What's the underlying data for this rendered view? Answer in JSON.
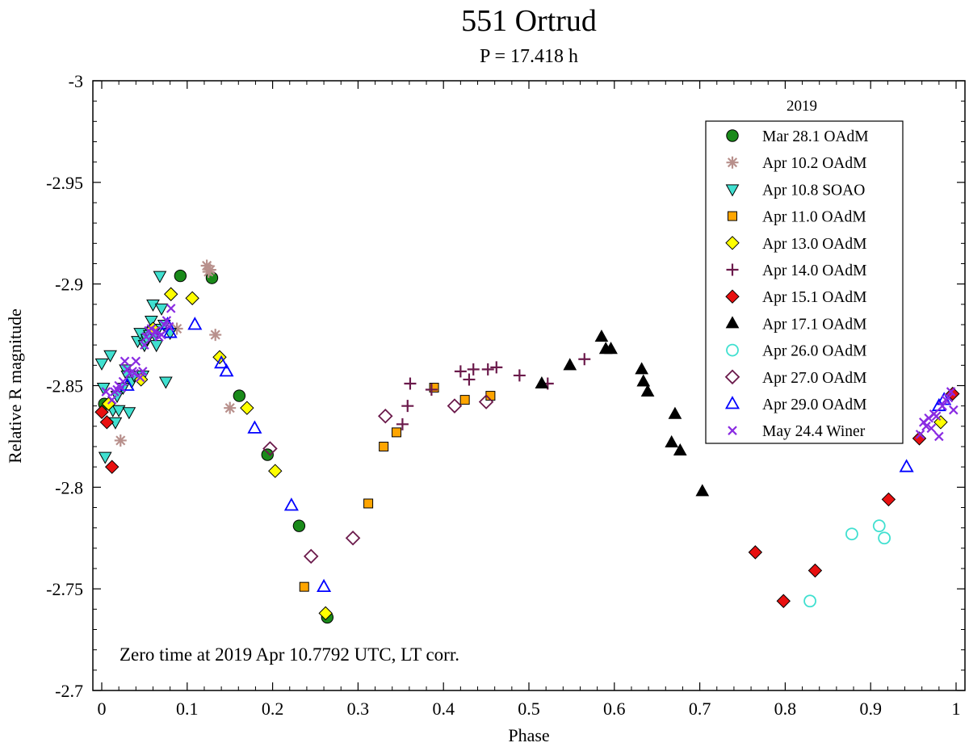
{
  "chart_data": {
    "type": "scatter",
    "title": "551 Ortrud",
    "subtitle": "P = 17.418 h",
    "xlabel": "Phase",
    "ylabel": "Relative R magnitude",
    "xlim": [
      0,
      1
    ],
    "ylim": [
      -3,
      -2.7
    ],
    "y_inverted": true,
    "x_ticks": [
      "0",
      "0.1",
      "0.2",
      "0.3",
      "0.4",
      "0.5",
      "0.6",
      "0.7",
      "0.8",
      "0.9",
      "1"
    ],
    "y_ticks": [
      "-3",
      "-2.95",
      "-2.9",
      "-2.85",
      "-2.8",
      "-2.75",
      "-2.7"
    ],
    "grid": false,
    "legend_title": "2019",
    "legend_position": "top-right",
    "annotation": "Zero time at 2019 Apr 10.7792 UTC, LT corr.",
    "series": [
      {
        "name": "Mar 28.1 OAdM",
        "marker": "circle",
        "color": "#1a8a1a",
        "points": [
          [
            0.003,
            -2.841
          ],
          [
            0.058,
            -2.877
          ],
          [
            0.092,
            -2.904
          ],
          [
            0.129,
            -2.903
          ],
          [
            0.161,
            -2.845
          ],
          [
            0.194,
            -2.816
          ],
          [
            0.231,
            -2.781
          ],
          [
            0.264,
            -2.736
          ]
        ]
      },
      {
        "name": "Apr 10.2 OAdM",
        "marker": "asterisk",
        "color": "#b8908c",
        "points": [
          [
            0.022,
            -2.823
          ],
          [
            0.088,
            -2.878
          ],
          [
            0.123,
            -2.909
          ],
          [
            0.125,
            -2.906
          ],
          [
            0.133,
            -2.875
          ],
          [
            0.15,
            -2.839
          ],
          [
            0.127,
            -2.907
          ]
        ]
      },
      {
        "name": "Apr 10.8 SOAO",
        "marker": "triangle-down",
        "color": "#40e0d0",
        "points": [
          [
            0.0,
            -2.861
          ],
          [
            0.002,
            -2.849
          ],
          [
            0.004,
            -2.815
          ],
          [
            0.01,
            -2.865
          ],
          [
            0.013,
            -2.838
          ],
          [
            0.016,
            -2.832
          ],
          [
            0.018,
            -2.845
          ],
          [
            0.02,
            -2.838
          ],
          [
            0.025,
            -2.849
          ],
          [
            0.028,
            -2.858
          ],
          [
            0.03,
            -2.855
          ],
          [
            0.032,
            -2.837
          ],
          [
            0.035,
            -2.852
          ],
          [
            0.038,
            -2.855
          ],
          [
            0.042,
            -2.872
          ],
          [
            0.045,
            -2.876
          ],
          [
            0.048,
            -2.855
          ],
          [
            0.05,
            -2.87
          ],
          [
            0.053,
            -2.873
          ],
          [
            0.056,
            -2.875
          ],
          [
            0.058,
            -2.882
          ],
          [
            0.06,
            -2.89
          ],
          [
            0.062,
            -2.875
          ],
          [
            0.064,
            -2.87
          ],
          [
            0.066,
            -2.878
          ],
          [
            0.068,
            -2.904
          ],
          [
            0.07,
            -2.888
          ],
          [
            0.073,
            -2.88
          ],
          [
            0.075,
            -2.852
          ],
          [
            0.08,
            -2.876
          ]
        ]
      },
      {
        "name": "Apr 11.0 OAdM",
        "marker": "square",
        "color": "#ffa500",
        "points": [
          [
            0.237,
            -2.751
          ],
          [
            0.312,
            -2.792
          ],
          [
            0.33,
            -2.82
          ],
          [
            0.345,
            -2.827
          ],
          [
            0.389,
            -2.849
          ],
          [
            0.425,
            -2.843
          ],
          [
            0.455,
            -2.845
          ]
        ]
      },
      {
        "name": "Apr 13.0 OAdM",
        "marker": "diamond",
        "color": "#ffff00",
        "points": [
          [
            0.008,
            -2.841
          ],
          [
            0.046,
            -2.853
          ],
          [
            0.06,
            -2.878
          ],
          [
            0.081,
            -2.895
          ],
          [
            0.106,
            -2.893
          ],
          [
            0.138,
            -2.864
          ],
          [
            0.17,
            -2.839
          ],
          [
            0.203,
            -2.808
          ],
          [
            0.262,
            -2.738
          ],
          [
            0.982,
            -2.832
          ]
        ]
      },
      {
        "name": "Apr 14.0 OAdM",
        "marker": "plus",
        "color": "#6b1a4b",
        "points": [
          [
            0.352,
            -2.831
          ],
          [
            0.358,
            -2.84
          ],
          [
            0.361,
            -2.851
          ],
          [
            0.386,
            -2.848
          ],
          [
            0.42,
            -2.857
          ],
          [
            0.43,
            -2.853
          ],
          [
            0.435,
            -2.858
          ],
          [
            0.452,
            -2.858
          ],
          [
            0.462,
            -2.859
          ],
          [
            0.489,
            -2.855
          ],
          [
            0.522,
            -2.851
          ],
          [
            0.565,
            -2.863
          ]
        ]
      },
      {
        "name": "Apr 15.1 OAdM",
        "marker": "diamond",
        "color": "#e81010",
        "points": [
          [
            0.0,
            -2.837
          ],
          [
            0.006,
            -2.832
          ],
          [
            0.012,
            -2.81
          ],
          [
            0.765,
            -2.768
          ],
          [
            0.798,
            -2.744
          ],
          [
            0.835,
            -2.759
          ],
          [
            0.921,
            -2.794
          ],
          [
            0.957,
            -2.824
          ],
          [
            0.996,
            -2.846
          ]
        ]
      },
      {
        "name": "Apr 17.1 OAdM",
        "marker": "triangle-up",
        "color": "#000000",
        "points": [
          [
            0.515,
            -2.851
          ],
          [
            0.548,
            -2.86
          ],
          [
            0.585,
            -2.874
          ],
          [
            0.59,
            -2.868
          ],
          [
            0.596,
            -2.868
          ],
          [
            0.632,
            -2.858
          ],
          [
            0.634,
            -2.852
          ],
          [
            0.639,
            -2.847
          ],
          [
            0.667,
            -2.822
          ],
          [
            0.671,
            -2.836
          ],
          [
            0.677,
            -2.818
          ],
          [
            0.703,
            -2.798
          ]
        ]
      },
      {
        "name": "Apr 26.0 OAdM",
        "marker": "circle-open",
        "color": "#40e0d0",
        "points": [
          [
            0.829,
            -2.744
          ],
          [
            0.878,
            -2.777
          ],
          [
            0.91,
            -2.781
          ],
          [
            0.916,
            -2.775
          ]
        ]
      },
      {
        "name": "Apr 27.0 OAdM",
        "marker": "diamond-open",
        "color": "#6b1a4b",
        "points": [
          [
            0.197,
            -2.819
          ],
          [
            0.245,
            -2.766
          ],
          [
            0.294,
            -2.775
          ],
          [
            0.332,
            -2.835
          ],
          [
            0.413,
            -2.84
          ],
          [
            0.45,
            -2.842
          ]
        ]
      },
      {
        "name": "Apr 29.0 OAdM",
        "marker": "triangle-up-open",
        "color": "#0000ff",
        "points": [
          [
            0.03,
            -2.85
          ],
          [
            0.077,
            -2.88
          ],
          [
            0.08,
            -2.876
          ],
          [
            0.109,
            -2.88
          ],
          [
            0.14,
            -2.861
          ],
          [
            0.146,
            -2.857
          ],
          [
            0.179,
            -2.829
          ],
          [
            0.222,
            -2.791
          ],
          [
            0.26,
            -2.751
          ],
          [
            0.942,
            -2.81
          ],
          [
            0.98,
            -2.84
          ],
          [
            0.986,
            -2.843
          ]
        ]
      },
      {
        "name": "May 24.4 Winer",
        "marker": "x",
        "color": "#8a2be2",
        "points": [
          [
            0.005,
            -2.847
          ],
          [
            0.012,
            -2.843
          ],
          [
            0.015,
            -2.847
          ],
          [
            0.018,
            -2.848
          ],
          [
            0.02,
            -2.85
          ],
          [
            0.023,
            -2.849
          ],
          [
            0.025,
            -2.852
          ],
          [
            0.027,
            -2.862
          ],
          [
            0.03,
            -2.858
          ],
          [
            0.033,
            -2.856
          ],
          [
            0.036,
            -2.857
          ],
          [
            0.038,
            -2.856
          ],
          [
            0.04,
            -2.862
          ],
          [
            0.045,
            -2.854
          ],
          [
            0.048,
            -2.857
          ],
          [
            0.05,
            -2.87
          ],
          [
            0.052,
            -2.874
          ],
          [
            0.055,
            -2.877
          ],
          [
            0.058,
            -2.878
          ],
          [
            0.06,
            -2.875
          ],
          [
            0.063,
            -2.877
          ],
          [
            0.067,
            -2.874
          ],
          [
            0.07,
            -2.875
          ],
          [
            0.073,
            -2.88
          ],
          [
            0.076,
            -2.882
          ],
          [
            0.079,
            -2.879
          ],
          [
            0.081,
            -2.888
          ],
          [
            0.958,
            -2.826
          ],
          [
            0.962,
            -2.832
          ],
          [
            0.965,
            -2.83
          ],
          [
            0.968,
            -2.834
          ],
          [
            0.971,
            -2.829
          ],
          [
            0.974,
            -2.836
          ],
          [
            0.977,
            -2.835
          ],
          [
            0.98,
            -2.825
          ],
          [
            0.984,
            -2.84
          ],
          [
            0.988,
            -2.843
          ],
          [
            0.991,
            -2.844
          ],
          [
            0.994,
            -2.847
          ],
          [
            0.997,
            -2.838
          ]
        ]
      }
    ]
  }
}
